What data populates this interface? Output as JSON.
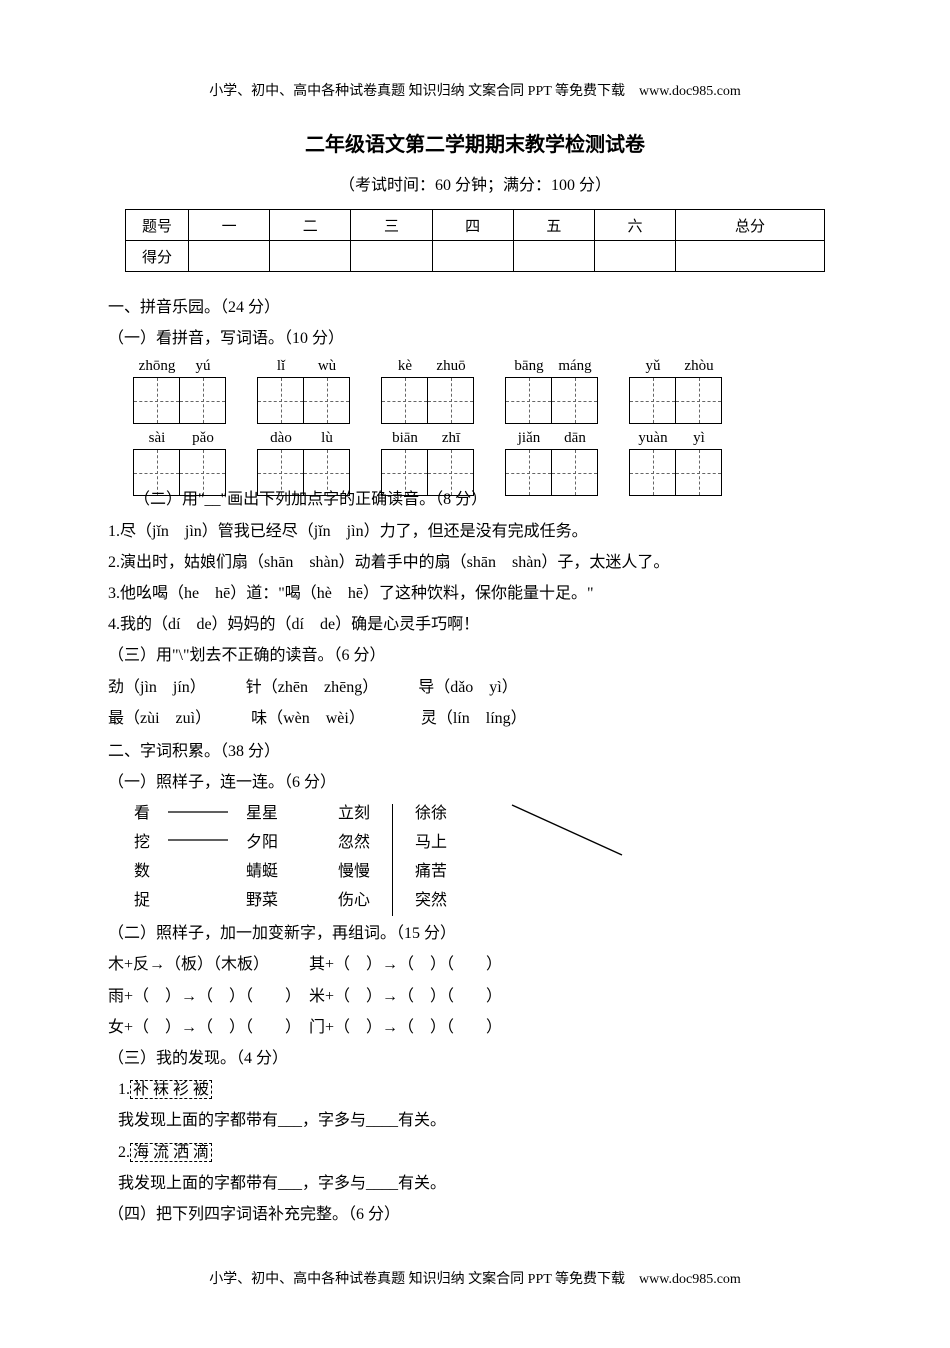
{
  "header_note": "小学、初中、高中各种试卷真题 知识归纳 文案合同 PPT 等免费下载　www.doc985.com",
  "footer_note": "小学、初中、高中各种试卷真题 知识归纳 文案合同 PPT 等免费下载　www.doc985.com",
  "title": "二年级语文第二学期期末教学检测试卷",
  "subtitle": "（考试时间：60 分钟；满分：100 分）",
  "score_table": {
    "row1": [
      "题号",
      "一",
      "二",
      "三",
      "四",
      "五",
      "六",
      "总分"
    ],
    "row2_label": "得分"
  },
  "sec1": {
    "heading": "一、拼音乐园。（24 分）",
    "p1_heading": "（一）看拼音，写词语。（10 分）",
    "pinyin_rows": [
      [
        [
          "zhōng",
          "yú"
        ],
        [
          "lǐ",
          "wù"
        ],
        [
          "kè",
          "zhuō"
        ],
        [
          "bāng",
          "máng"
        ],
        [
          "yǔ",
          "zhòu"
        ]
      ],
      [
        [
          "sài",
          "pǎo"
        ],
        [
          "dào",
          "lù"
        ],
        [
          "biān",
          "zhī"
        ],
        [
          "jiǎn",
          "dān"
        ],
        [
          "yuàn",
          "yì"
        ]
      ]
    ],
    "p2_heading": "（二）用\"__\"画出下列加点字的正确读音。（8 分）",
    "p2_lines": [
      "1.尽（jǐn　jìn）管我已经尽（jǐn　jìn）力了，但还是没有完成任务。",
      "2.演出时，姑娘们扇（shān　shàn）动着手中的扇（shān　shàn）子，太迷人了。",
      "3.他吆喝（he　hē）道：\"喝（hè　hē）了这种饮料，保你能量十足。\"",
      "4.我的（dí　de）妈妈的（dí　de）确是心灵手巧啊！"
    ],
    "p3_heading": "（三）用\"\\\"划去不正确的读音。（6 分）",
    "p3_lines": [
      "劲（jìn　jín）　　　针（zhēn　zhēng）　　　导（dǎo　yì）",
      "最（zùi　zuì）　　　味（wèn　wèi）　　　　灵（lín　líng）"
    ]
  },
  "sec2": {
    "heading": "二、字词积累。（38 分）",
    "p1_heading": "（一）照样子，连一连。（6 分）",
    "match_left_a": [
      "看",
      "挖",
      "数",
      "捉"
    ],
    "match_left_b": [
      "星星",
      "夕阳",
      "蜻蜓",
      "野菜"
    ],
    "match_mid_a": [
      "立刻",
      "忽然",
      "慢慢",
      "伤心"
    ],
    "match_mid_b": [
      "徐徐",
      "马上",
      "痛苦",
      "突然"
    ],
    "p2_heading": "（二）照样子，加一加变新字，再组词。（15 分）",
    "p2_lines": [
      "木+反→（板）（木板）　　　其+（　）→（　）（　　）",
      "雨+（　）→（　）（　　）　米+（　）→（　）（　　）",
      "女+（　）→（　）（　　）　门+（　）→（　）（　　）"
    ],
    "p3_heading": "（三）我的发现。（4 分）",
    "p3_item1_box": "补 袜 衫 被",
    "p3_item1_line": "我发现上面的字都带有___，字多与____有关。",
    "p3_item2_box": "海 流 洒 滴",
    "p3_item2_line": "我发现上面的字都带有___，字多与____有关。",
    "p4_heading": "（四）把下列四字词语补充完整。（6 分）"
  }
}
